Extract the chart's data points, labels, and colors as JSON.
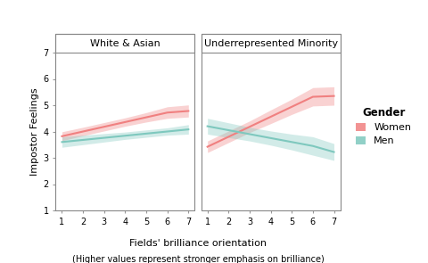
{
  "panel1_title": "White & Asian",
  "panel2_title": "Underrepresented Minority",
  "xlabel": "Fields' brilliance orientation",
  "xlabel2": "(Higher values represent stronger emphasis on brilliance)",
  "ylabel": "Impostor Feelings",
  "legend_title": "Gender",
  "legend_women": "Women",
  "legend_men": "Men",
  "color_women": "#F08080",
  "color_men": "#7EC8BE",
  "xlim": [
    1,
    7
  ],
  "ylim": [
    1,
    7
  ],
  "yticks": [
    1,
    2,
    3,
    4,
    5,
    6,
    7
  ],
  "xticks": [
    1,
    2,
    3,
    4,
    5,
    6,
    7
  ],
  "panel1_women_y": [
    3.82,
    4.0,
    4.18,
    4.36,
    4.54,
    4.72,
    4.78
  ],
  "panel1_men_y": [
    3.6,
    3.68,
    3.76,
    3.84,
    3.92,
    4.0,
    4.08
  ],
  "panel1_women_ci_low": [
    3.65,
    3.84,
    4.02,
    4.2,
    4.36,
    4.5,
    4.55
  ],
  "panel1_women_ci_high": [
    3.99,
    4.16,
    4.34,
    4.52,
    4.72,
    4.94,
    5.01
  ],
  "panel1_men_ci_low": [
    3.4,
    3.5,
    3.6,
    3.7,
    3.78,
    3.86,
    3.9
  ],
  "panel1_men_ci_high": [
    3.8,
    3.86,
    3.92,
    3.98,
    4.06,
    4.14,
    4.26
  ],
  "panel2_women_y": [
    3.42,
    3.8,
    4.18,
    4.56,
    4.94,
    5.32,
    5.35
  ],
  "panel2_men_y": [
    4.2,
    4.05,
    3.9,
    3.75,
    3.6,
    3.45,
    3.22
  ],
  "panel2_women_ci_low": [
    3.2,
    3.58,
    3.96,
    4.3,
    4.65,
    4.97,
    5.0
  ],
  "panel2_women_ci_high": [
    3.64,
    4.02,
    4.4,
    4.82,
    5.23,
    5.67,
    5.7
  ],
  "panel2_men_ci_low": [
    3.9,
    3.77,
    3.64,
    3.48,
    3.3,
    3.1,
    2.9
  ],
  "panel2_men_ci_high": [
    4.5,
    4.33,
    4.16,
    4.02,
    3.9,
    3.8,
    3.54
  ],
  "background_color": "#ffffff"
}
